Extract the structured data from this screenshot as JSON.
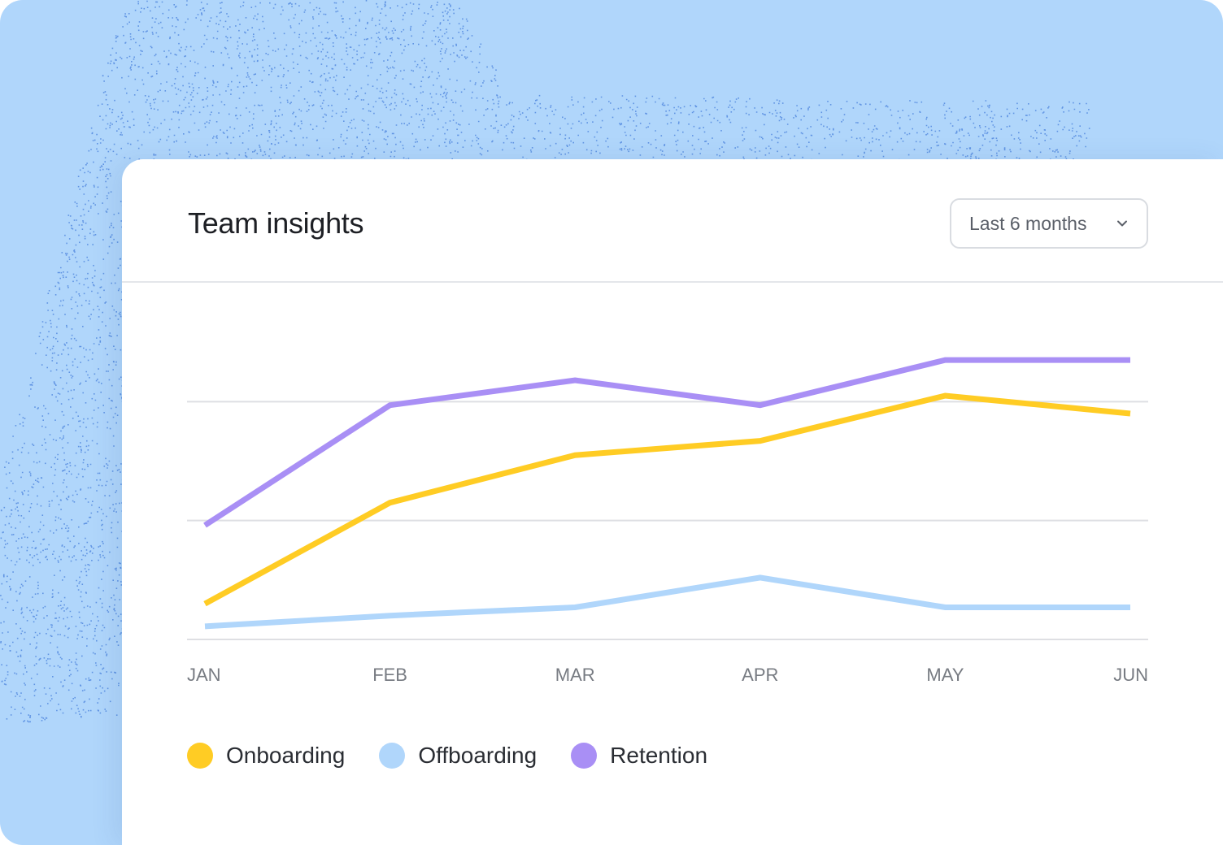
{
  "card": {
    "title": "Team insights",
    "range_select": {
      "value": "Last 6 months",
      "icon": "chevron-down-icon"
    }
  },
  "colors": {
    "background": "#b0d6fb",
    "speckle": "#1f5fcf",
    "Onboarding": "#ffcc24",
    "Offboarding": "#b0d6fb",
    "Retention": "#a98ff5",
    "gridline": "#dedfe3",
    "tick_label": "#777b82"
  },
  "chart_data": {
    "type": "line",
    "title": "",
    "xlabel": "",
    "ylabel": "",
    "x": [
      "JAN",
      "FEB",
      "MAR",
      "APR",
      "MAY",
      "JUN"
    ],
    "ylim": [
      0,
      3
    ],
    "grid": true,
    "y_ticks_shown": false,
    "legend_position": "bottom-left",
    "series": [
      {
        "name": "Onboarding",
        "values": [
          0.3,
          1.15,
          1.55,
          1.67,
          2.05,
          1.9
        ]
      },
      {
        "name": "Offboarding",
        "values": [
          0.11,
          0.2,
          0.27,
          0.52,
          0.27,
          0.27
        ]
      },
      {
        "name": "Retention",
        "values": [
          0.96,
          1.97,
          2.18,
          1.97,
          2.35,
          2.35
        ]
      }
    ]
  }
}
